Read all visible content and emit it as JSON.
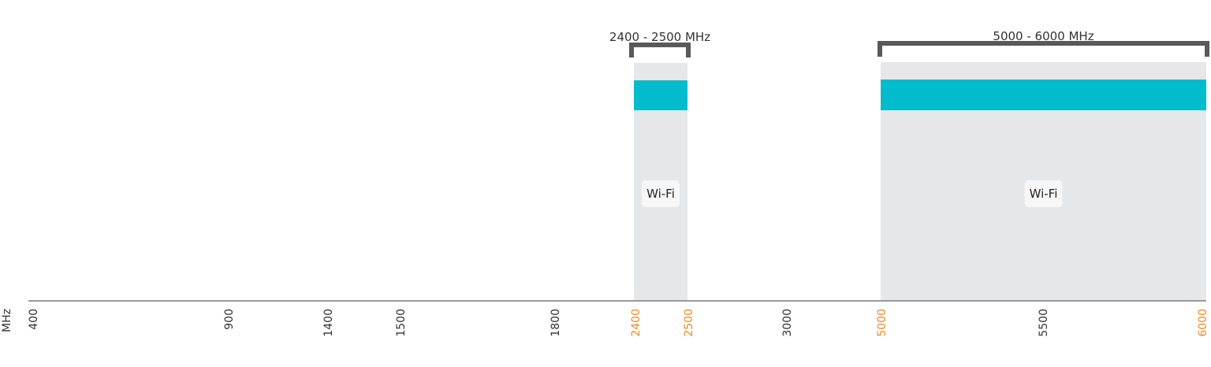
{
  "unit_label": "MHz",
  "colors": {
    "band_bg": "#e6e7e8",
    "band_fill": "#00bccd",
    "bracket": "#58595b",
    "tick_normal": "#333333",
    "tick_highlight": "#f08a24",
    "axis": "#9a9a9a"
  },
  "ticks": [
    {
      "label": "400",
      "highlight": false
    },
    {
      "label": "900",
      "highlight": false
    },
    {
      "label": "1400",
      "highlight": false
    },
    {
      "label": "1500",
      "highlight": false
    },
    {
      "label": "1800",
      "highlight": false
    },
    {
      "label": "2400",
      "highlight": true
    },
    {
      "label": "2500",
      "highlight": true
    },
    {
      "label": "3000",
      "highlight": false
    },
    {
      "label": "5000",
      "highlight": true
    },
    {
      "label": "5500",
      "highlight": false
    },
    {
      "label": "6000",
      "highlight": true
    }
  ],
  "bands": [
    {
      "range_label": "2400 - 2500 MHz",
      "start": 2400,
      "end": 2500,
      "tag": "Wi-Fi"
    },
    {
      "range_label": "5000 - 6000 MHz",
      "start": 5000,
      "end": 6000,
      "tag": "Wi-Fi"
    }
  ]
}
